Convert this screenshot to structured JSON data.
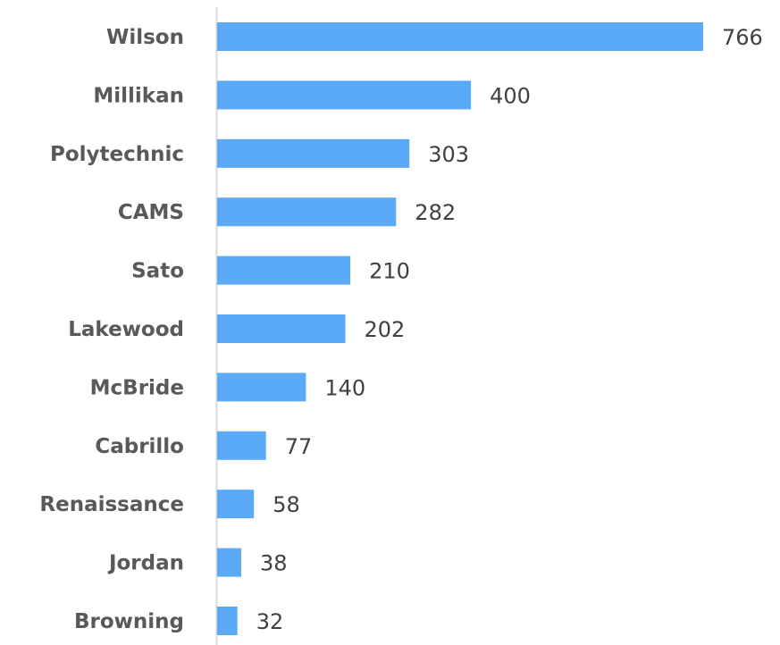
{
  "chart_data": {
    "type": "bar",
    "orientation": "horizontal",
    "categories": [
      "Wilson",
      "Millikan",
      "Polytechnic",
      "CAMS",
      "Sato",
      "Lakewood",
      "McBride",
      "Cabrillo",
      "Renaissance",
      "Jordan",
      "Browning"
    ],
    "values": [
      766,
      400,
      303,
      282,
      210,
      202,
      140,
      77,
      58,
      38,
      32
    ],
    "title": "",
    "xlabel": "",
    "ylabel": "",
    "xlim": [
      0,
      766
    ],
    "grid": false,
    "legend": "none",
    "data_labels": true,
    "colors": {
      "bar": "#5aaaf7",
      "axis": "#d9d9d9",
      "category_text": "#595959",
      "value_text": "#404040"
    }
  }
}
